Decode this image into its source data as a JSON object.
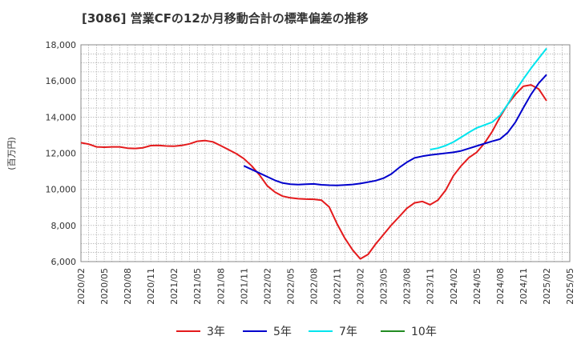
{
  "chart_data": {
    "type": "line",
    "title": "[3086]  営業CFの12か月移動合計の標準偏差の推移",
    "ylabel": "(百万円)",
    "xlabel": "",
    "ylim": [
      6000,
      18000
    ],
    "yticks": [
      6000,
      8000,
      10000,
      12000,
      14000,
      16000,
      18000
    ],
    "ytick_labels": [
      "6,000",
      "8,000",
      "10,000",
      "12,000",
      "14,000",
      "16,000",
      "18,000"
    ],
    "x_range": [
      "2020-02",
      "2025-05"
    ],
    "xtick_labels": [
      "2020/02",
      "2020/05",
      "2020/08",
      "2020/11",
      "2021/02",
      "2021/05",
      "2021/08",
      "2021/11",
      "2022/02",
      "2022/05",
      "2022/08",
      "2022/11",
      "2023/02",
      "2023/05",
      "2023/08",
      "2023/11",
      "2024/02",
      "2024/05",
      "2024/08",
      "2024/11",
      "2025/02",
      "2025/05"
    ],
    "grid": true,
    "legend_position": "bottom",
    "series": [
      {
        "name": "3年",
        "color": "#e41a1c",
        "x": [
          "2020-02",
          "2020-03",
          "2020-04",
          "2020-05",
          "2020-06",
          "2020-07",
          "2020-08",
          "2020-09",
          "2020-10",
          "2020-11",
          "2020-12",
          "2021-01",
          "2021-02",
          "2021-03",
          "2021-04",
          "2021-05",
          "2021-06",
          "2021-07",
          "2021-08",
          "2021-09",
          "2021-10",
          "2021-11",
          "2021-12",
          "2022-01",
          "2022-02",
          "2022-03",
          "2022-04",
          "2022-05",
          "2022-06",
          "2022-07",
          "2022-08",
          "2022-09",
          "2022-10",
          "2022-11",
          "2022-12",
          "2023-01",
          "2023-02",
          "2023-03",
          "2023-04",
          "2023-05",
          "2023-06",
          "2023-07",
          "2023-08",
          "2023-09",
          "2023-10",
          "2023-11",
          "2023-12",
          "2024-01",
          "2024-02",
          "2024-03",
          "2024-04",
          "2024-05",
          "2024-06",
          "2024-07",
          "2024-08",
          "2024-09",
          "2024-10",
          "2024-11",
          "2024-12",
          "2025-01",
          "2025-02"
        ],
        "values": [
          12580,
          12500,
          12350,
          12330,
          12350,
          12350,
          12280,
          12260,
          12300,
          12420,
          12430,
          12400,
          12390,
          12430,
          12520,
          12660,
          12700,
          12630,
          12420,
          12200,
          11980,
          11700,
          11300,
          10800,
          10200,
          9850,
          9620,
          9530,
          9480,
          9460,
          9450,
          9400,
          9020,
          8100,
          7300,
          6650,
          6150,
          6400,
          6980,
          7500,
          8020,
          8480,
          8950,
          9250,
          9330,
          9150,
          9400,
          9950,
          10750,
          11300,
          11750,
          12050,
          12550,
          13200,
          14000,
          14700,
          15250,
          15700,
          15780,
          15550,
          14900
        ]
      },
      {
        "name": "5年",
        "color": "#0000cc",
        "x": [
          "2021-11",
          "2021-12",
          "2022-01",
          "2022-02",
          "2022-03",
          "2022-04",
          "2022-05",
          "2022-06",
          "2022-07",
          "2022-08",
          "2022-09",
          "2022-10",
          "2022-11",
          "2022-12",
          "2023-01",
          "2023-02",
          "2023-03",
          "2023-04",
          "2023-05",
          "2023-06",
          "2023-07",
          "2023-08",
          "2023-09",
          "2023-10",
          "2023-11",
          "2023-12",
          "2024-01",
          "2024-02",
          "2024-03",
          "2024-04",
          "2024-05",
          "2024-06",
          "2024-07",
          "2024-08",
          "2024-09",
          "2024-10",
          "2024-11",
          "2024-12",
          "2025-01",
          "2025-02"
        ],
        "values": [
          11300,
          11100,
          10900,
          10700,
          10500,
          10350,
          10280,
          10260,
          10280,
          10300,
          10250,
          10230,
          10220,
          10240,
          10270,
          10320,
          10400,
          10480,
          10620,
          10850,
          11200,
          11500,
          11740,
          11830,
          11900,
          11950,
          12000,
          12050,
          12130,
          12260,
          12400,
          12530,
          12660,
          12780,
          13140,
          13720,
          14500,
          15250,
          15880,
          16350
        ]
      },
      {
        "name": "7年",
        "color": "#00e5ee",
        "x": [
          "2023-11",
          "2023-12",
          "2024-01",
          "2024-02",
          "2024-03",
          "2024-04",
          "2024-05",
          "2024-06",
          "2024-07",
          "2024-08",
          "2024-09",
          "2024-10",
          "2024-11",
          "2024-12",
          "2025-01",
          "2025-02"
        ],
        "values": [
          12200,
          12280,
          12420,
          12620,
          12880,
          13150,
          13400,
          13560,
          13720,
          14100,
          14700,
          15450,
          16100,
          16700,
          17250,
          17800
        ]
      },
      {
        "name": "10年",
        "color": "#228b22",
        "x": [],
        "values": []
      }
    ]
  }
}
